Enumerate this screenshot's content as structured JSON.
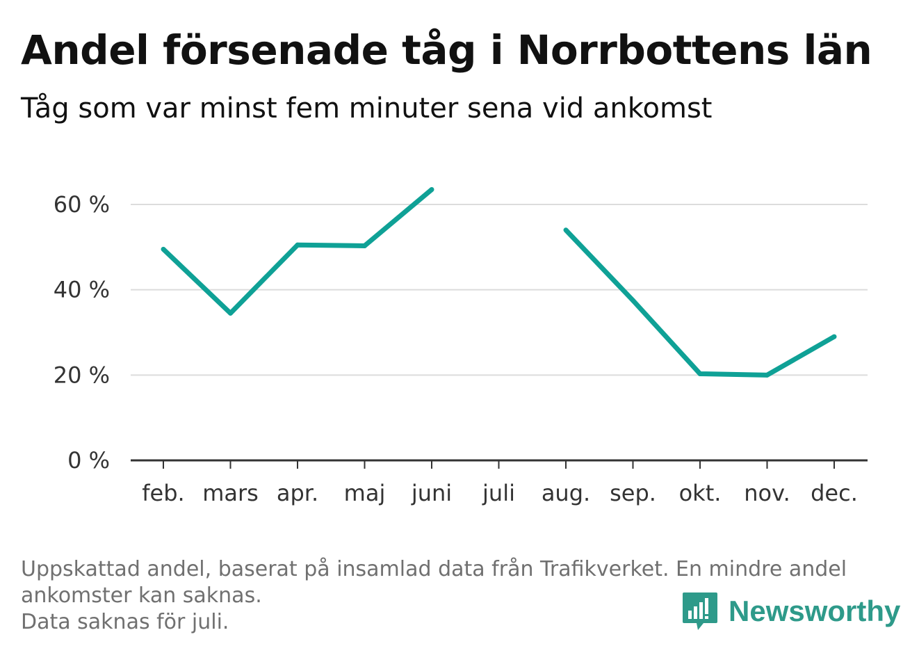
{
  "title": "Andel försenade tåg i Norrbottens län",
  "subtitle": "Tåg som var minst fem minuter sena vid ankomst",
  "footer": {
    "line1": "Uppskattad andel, baserat på insamlad data från Trafikverket. En mindre andel",
    "line2": "ankomster kan saknas.",
    "line3": "Data saknas för juli."
  },
  "brand": {
    "name": "Newsworthy",
    "icon": "bar-chart-speech-icon",
    "color": "#2e9a8a"
  },
  "chart_data": {
    "type": "line",
    "categories": [
      "feb.",
      "mars",
      "apr.",
      "maj",
      "juni",
      "juli",
      "aug.",
      "sep.",
      "okt.",
      "nov.",
      "dec."
    ],
    "series": [
      {
        "values": [
          49.5,
          34.5,
          50.5,
          50.3,
          63.5,
          null,
          54,
          37.5,
          20.3,
          20,
          29
        ],
        "color": "#0fa196"
      }
    ],
    "yticks": [
      "0 %",
      "20 %",
      "40 %",
      "60 %"
    ],
    "ytick_values": [
      0,
      20,
      40,
      60
    ],
    "ylim": [
      0,
      65
    ],
    "grid": true
  }
}
